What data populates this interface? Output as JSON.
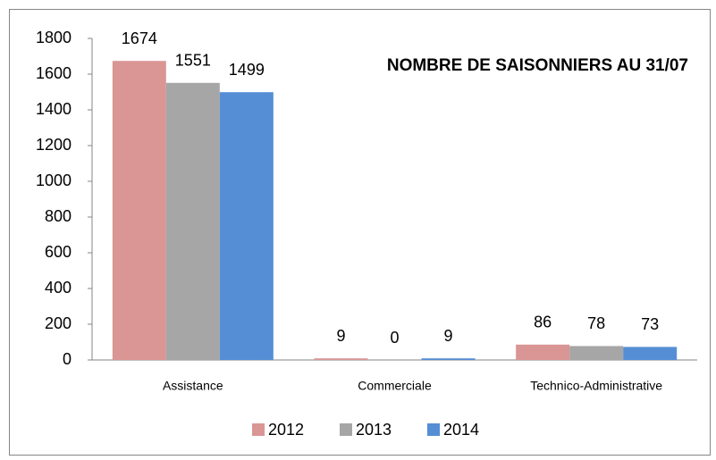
{
  "chart_data": {
    "type": "bar",
    "title": "NOMBRE DE SAISONNIERS AU 31/07",
    "categories": [
      "Assistance",
      "Commerciale",
      "Technico-Administrative"
    ],
    "series": [
      {
        "name": "2012",
        "color": "#d99694",
        "values": [
          1674,
          9,
          86
        ]
      },
      {
        "name": "2013",
        "color": "#a6a6a6",
        "values": [
          1551,
          0,
          78
        ]
      },
      {
        "name": "2014",
        "color": "#558ed5",
        "values": [
          1499,
          9,
          73
        ]
      }
    ],
    "ylim": [
      0,
      1800
    ],
    "yticks": [
      0,
      200,
      400,
      600,
      800,
      1000,
      1200,
      1400,
      1600,
      1800
    ],
    "legend": "bottom"
  }
}
